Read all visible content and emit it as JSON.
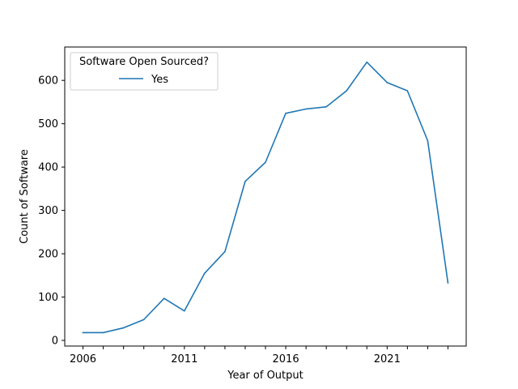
{
  "chart_data": {
    "type": "line",
    "xlabel": "Year of Output",
    "ylabel": "Count of Software",
    "xlim": [
      2005.1,
      2024.9
    ],
    "ylim": [
      -13,
      677
    ],
    "x_ticks": [
      2006,
      2007,
      2008,
      2009,
      2010,
      2011,
      2012,
      2013,
      2014,
      2015,
      2016,
      2017,
      2018,
      2019,
      2020,
      2021,
      2022,
      2023,
      2024
    ],
    "x_tick_labels": {
      "2006": "2006",
      "2011": "2011",
      "2016": "2016",
      "2021": "2021"
    },
    "y_ticks": [
      0,
      100,
      200,
      300,
      400,
      500,
      600
    ],
    "y_tick_labels": [
      "0",
      "100",
      "200",
      "300",
      "400",
      "500",
      "600"
    ],
    "legend": {
      "title": "Software Open Sourced?",
      "position": "top-left"
    },
    "series": [
      {
        "name": "Yes",
        "color": "#1f77b4",
        "x": [
          2006,
          2007,
          2008,
          2009,
          2010,
          2011,
          2012,
          2013,
          2014,
          2015,
          2016,
          2017,
          2018,
          2019,
          2020,
          2021,
          2022,
          2023,
          2024
        ],
        "values": [
          18,
          18,
          29,
          48,
          97,
          68,
          155,
          205,
          367,
          411,
          524,
          534,
          539,
          576,
          642,
          595,
          576,
          461,
          133
        ]
      }
    ],
    "grid": false
  }
}
